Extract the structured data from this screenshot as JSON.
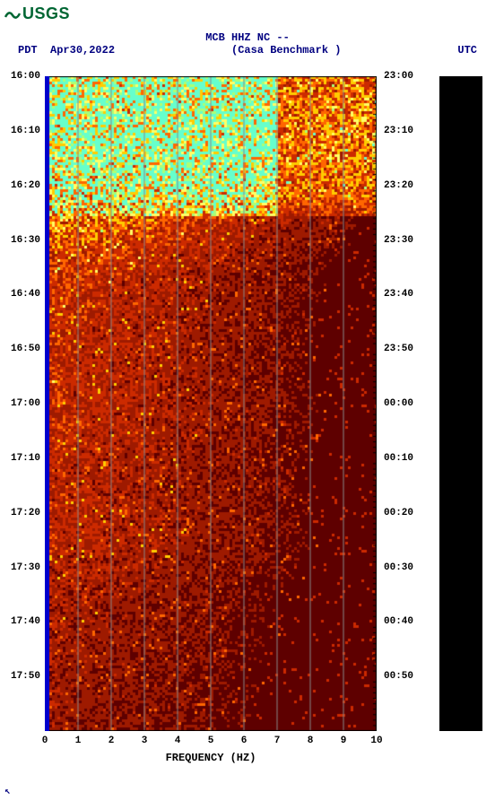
{
  "logo": {
    "text": "USGS"
  },
  "header": {
    "title_line1": "MCB HHZ NC --",
    "title_line2": "(Casa Benchmark )",
    "left_tz": "PDT",
    "date": "Apr30,2022",
    "right_tz": "UTC"
  },
  "chart": {
    "type": "spectrogram",
    "xlabel": "FREQUENCY (HZ)",
    "xlim": [
      0,
      10
    ],
    "xticks": [
      0,
      1,
      2,
      3,
      4,
      5,
      6,
      7,
      8,
      9,
      10
    ],
    "left_yticks": [
      "16:00",
      "16:10",
      "16:20",
      "16:30",
      "16:40",
      "16:50",
      "17:00",
      "17:10",
      "17:20",
      "17:30",
      "17:40",
      "17:50"
    ],
    "right_yticks": [
      "23:00",
      "23:10",
      "23:20",
      "23:30",
      "23:40",
      "23:50",
      "00:00",
      "00:10",
      "00:20",
      "00:30",
      "00:40",
      "00:50"
    ],
    "ytick_count": 12,
    "background_color": "#ffffff",
    "plot_bg": "#5e0000",
    "blue_strip": "#0000cc",
    "gridline_color": "#888888",
    "palette": {
      "dark": "#5e0000",
      "mid_red": "#9e1a00",
      "red": "#cc2a00",
      "orange": "#ff6600",
      "yellow": "#ffcc00",
      "lt_yellow": "#ffff66",
      "green": "#aaff77",
      "cyan": "#66ffcc"
    },
    "intensity_profile": {
      "comment": "approximate relative energy vs time-fraction 0..1; higher in first ~0.2",
      "stops": [
        {
          "t": 0.0,
          "v": 0.95
        },
        {
          "t": 0.05,
          "v": 0.98
        },
        {
          "t": 0.12,
          "v": 1.0
        },
        {
          "t": 0.18,
          "v": 0.85
        },
        {
          "t": 0.22,
          "v": 0.55
        },
        {
          "t": 0.3,
          "v": 0.35
        },
        {
          "t": 0.4,
          "v": 0.3
        },
        {
          "t": 0.5,
          "v": 0.32
        },
        {
          "t": 0.6,
          "v": 0.28
        },
        {
          "t": 0.7,
          "v": 0.3
        },
        {
          "t": 0.8,
          "v": 0.22
        },
        {
          "t": 0.9,
          "v": 0.2
        },
        {
          "t": 1.0,
          "v": 0.18
        }
      ]
    },
    "colorbar_fill": "#000000",
    "title_color": "#000080",
    "axis_font_size": 11,
    "title_font_size": 12
  },
  "cursor": "↖"
}
